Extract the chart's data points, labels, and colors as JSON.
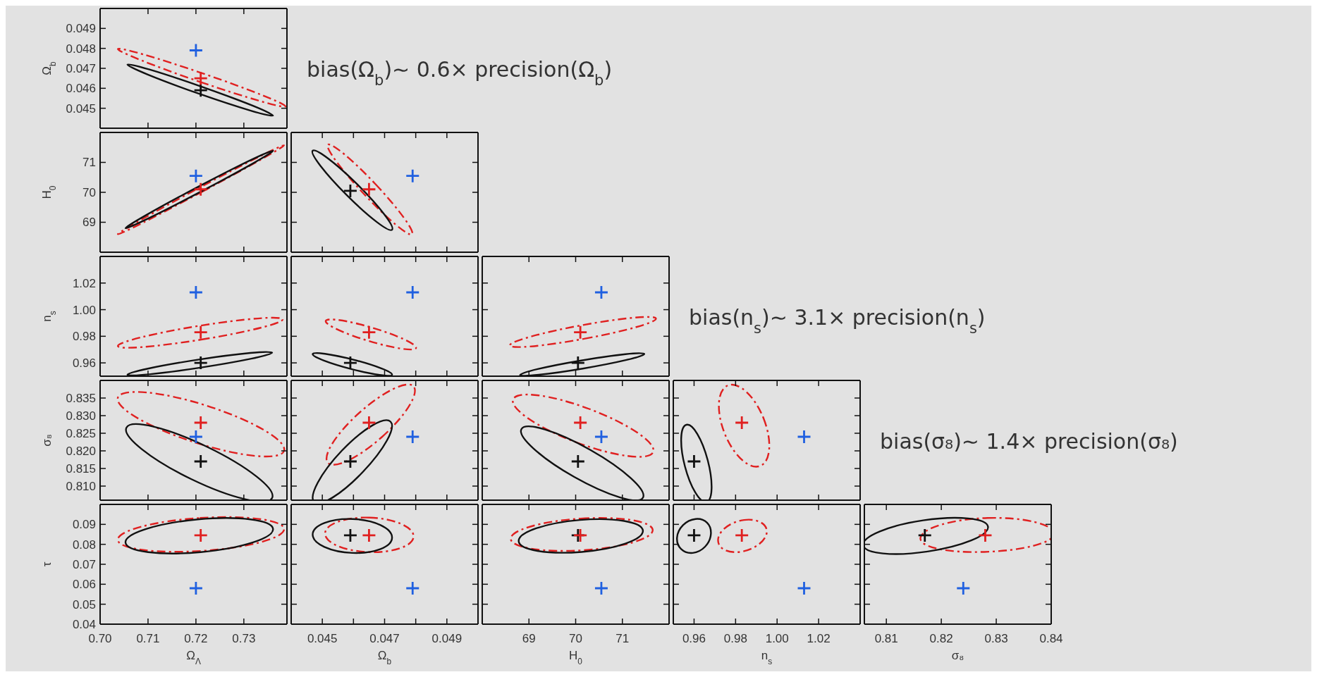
{
  "chart_data": [
    {
      "type": "scatter",
      "tick_labels": "y",
      "ylabel": "Ω$_{b}$",
      "xlim": [
        0.7,
        0.739
      ],
      "ylim": [
        0.044,
        0.05
      ],
      "xticks": [
        0.7,
        0.71,
        0.72,
        0.73
      ],
      "yticks": [
        0.045,
        0.046,
        0.047,
        0.048,
        0.049
      ],
      "annotations": [
        "bias(Ω$_{b}$)∼ 0.6× precision(Ω$_{b}$)"
      ],
      "series": [
        {
          "type": "scatter",
          "marker": "cross",
          "color": "#2060e0",
          "x": [
            0.72
          ],
          "values": [
            0.0479
          ]
        },
        {
          "type": "scatter",
          "marker": "cross",
          "color": "#111111",
          "x": [
            0.721
          ],
          "values": [
            0.0459
          ]
        },
        {
          "type": "scatter",
          "marker": "cross",
          "color": "#e02020",
          "x": [
            0.721
          ],
          "values": [
            0.0465
          ]
        }
      ]
    },
    {
      "type": "scatter",
      "tick_labels": "y",
      "ylabel": "H$_{0}$",
      "xlim": [
        0.7,
        0.739
      ],
      "ylim": [
        68,
        72
      ],
      "xticks": [
        0.7,
        0.71,
        0.72,
        0.73
      ],
      "yticks": [
        69,
        70,
        71
      ],
      "series": [
        {
          "type": "scatter",
          "marker": "cross",
          "color": "#2060e0",
          "x": [
            0.72
          ],
          "values": [
            70.55
          ]
        },
        {
          "type": "scatter",
          "marker": "cross",
          "color": "#e02020",
          "x": [
            0.721
          ],
          "values": [
            70.1
          ]
        }
      ]
    },
    {
      "type": "scatter",
      "tick_labels": false,
      "xlim": [
        0.044,
        0.05
      ],
      "ylim": [
        68,
        72
      ],
      "xticks": [
        0.045,
        0.046,
        0.047,
        0.048,
        0.049
      ],
      "yticks": [
        69,
        70,
        71
      ],
      "series": [
        {
          "type": "scatter",
          "marker": "cross",
          "color": "#2060e0",
          "x": [
            0.0479
          ],
          "values": [
            70.55
          ]
        },
        {
          "type": "scatter",
          "marker": "cross",
          "color": "#111111",
          "x": [
            0.0459
          ],
          "values": [
            70.05
          ]
        },
        {
          "type": "scatter",
          "marker": "cross",
          "color": "#e02020",
          "x": [
            0.0465
          ],
          "values": [
            70.1
          ]
        }
      ]
    },
    {
      "type": "scatter",
      "tick_labels": "y",
      "ylabel": "n$_{s}$",
      "xlim": [
        0.7,
        0.739
      ],
      "ylim": [
        0.95,
        1.04
      ],
      "xticks": [
        0.7,
        0.71,
        0.72,
        0.73
      ],
      "yticks": [
        0.96,
        0.98,
        {
          "value": 1,
          "label": "1.00"
        },
        1.02
      ],
      "series": [
        {
          "type": "scatter",
          "marker": "cross",
          "color": "#2060e0",
          "x": [
            0.72
          ],
          "values": [
            1.013
          ]
        },
        {
          "type": "scatter",
          "marker": "cross",
          "color": "#111111",
          "x": [
            0.721
          ],
          "values": [
            0.96
          ]
        },
        {
          "type": "scatter",
          "marker": "cross",
          "color": "#e02020",
          "x": [
            0.721
          ],
          "values": [
            0.983
          ]
        }
      ]
    },
    {
      "type": "scatter",
      "tick_labels": false,
      "xlim": [
        0.044,
        0.05
      ],
      "ylim": [
        0.95,
        1.04
      ],
      "xticks": [
        0.045,
        0.046,
        0.047,
        0.048,
        0.049
      ],
      "yticks": [
        0.96,
        0.98,
        1,
        1.02
      ],
      "series": [
        {
          "type": "scatter",
          "marker": "cross",
          "color": "#2060e0",
          "x": [
            0.0479
          ],
          "values": [
            1.013
          ]
        },
        {
          "type": "scatter",
          "marker": "cross",
          "color": "#111111",
          "x": [
            0.0459
          ],
          "values": [
            0.96
          ]
        },
        {
          "type": "scatter",
          "marker": "cross",
          "color": "#e02020",
          "x": [
            0.0465
          ],
          "values": [
            0.983
          ]
        }
      ]
    },
    {
      "type": "scatter",
      "tick_labels": false,
      "xlim": [
        68,
        72
      ],
      "ylim": [
        0.95,
        1.04
      ],
      "xticks": [
        69,
        70,
        71
      ],
      "yticks": [
        0.96,
        0.98,
        1,
        1.02
      ],
      "annotations": [
        "bias(n$_{s}$)∼ 3.1× precision(n$_{s}$)"
      ],
      "series": [
        {
          "type": "scatter",
          "marker": "cross",
          "color": "#2060e0",
          "x": [
            70.55
          ],
          "values": [
            1.013
          ]
        },
        {
          "type": "scatter",
          "marker": "cross",
          "color": "#111111",
          "x": [
            70.05
          ],
          "values": [
            0.96
          ]
        },
        {
          "type": "scatter",
          "marker": "cross",
          "color": "#e02020",
          "x": [
            70.1
          ],
          "values": [
            0.983
          ]
        }
      ]
    },
    {
      "type": "scatter",
      "tick_labels": "y",
      "ylabel": "σ₈",
      "xlim": [
        0.7,
        0.739
      ],
      "ylim": [
        0.806,
        0.84
      ],
      "xticks": [
        0.7,
        0.71,
        0.72,
        0.73
      ],
      "yticks": [
        {
          "value": 0.81,
          "label": "0.810"
        },
        0.815,
        {
          "value": 0.82,
          "label": "0.820"
        },
        0.825,
        {
          "value": 0.83,
          "label": "0.830"
        },
        0.835
      ],
      "series": [
        {
          "type": "scatter",
          "marker": "cross",
          "color": "#2060e0",
          "x": [
            0.72
          ],
          "values": [
            0.824
          ]
        },
        {
          "type": "scatter",
          "marker": "cross",
          "color": "#111111",
          "x": [
            0.721
          ],
          "values": [
            0.817
          ]
        },
        {
          "type": "scatter",
          "marker": "cross",
          "color": "#e02020",
          "x": [
            0.721
          ],
          "values": [
            0.828
          ]
        }
      ]
    },
    {
      "type": "scatter",
      "tick_labels": false,
      "xlim": [
        0.044,
        0.05
      ],
      "ylim": [
        0.806,
        0.84
      ],
      "xticks": [
        0.045,
        0.046,
        0.047,
        0.048,
        0.049
      ],
      "yticks": [
        0.81,
        0.815,
        0.82,
        0.825,
        0.83,
        0.835
      ],
      "series": [
        {
          "type": "scatter",
          "marker": "cross",
          "color": "#2060e0",
          "x": [
            0.0479
          ],
          "values": [
            0.824
          ]
        },
        {
          "type": "scatter",
          "marker": "cross",
          "color": "#111111",
          "x": [
            0.0459
          ],
          "values": [
            0.817
          ]
        },
        {
          "type": "scatter",
          "marker": "cross",
          "color": "#e02020",
          "x": [
            0.0465
          ],
          "values": [
            0.828
          ]
        }
      ]
    },
    {
      "type": "scatter",
      "tick_labels": false,
      "xlim": [
        68,
        72
      ],
      "ylim": [
        0.806,
        0.84
      ],
      "xticks": [
        69,
        70,
        71
      ],
      "yticks": [
        0.81,
        0.815,
        0.82,
        0.825,
        0.83,
        0.835
      ],
      "series": [
        {
          "type": "scatter",
          "marker": "cross",
          "color": "#2060e0",
          "x": [
            70.55
          ],
          "values": [
            0.824
          ]
        },
        {
          "type": "scatter",
          "marker": "cross",
          "color": "#111111",
          "x": [
            70.05
          ],
          "values": [
            0.817
          ]
        },
        {
          "type": "scatter",
          "marker": "cross",
          "color": "#e02020",
          "x": [
            70.1
          ],
          "values": [
            0.828
          ]
        }
      ]
    },
    {
      "type": "scatter",
      "tick_labels": false,
      "xlim": [
        0.95,
        1.04
      ],
      "ylim": [
        0.806,
        0.84
      ],
      "xticks": [
        0.96,
        0.98,
        1,
        1.02
      ],
      "yticks": [
        0.81,
        0.815,
        0.82,
        0.825,
        0.83,
        0.835
      ],
      "annotations": [
        "bias(σ₈)∼ 1.4× precision(σ₈)"
      ],
      "series": [
        {
          "type": "scatter",
          "marker": "cross",
          "color": "#2060e0",
          "x": [
            1.013
          ],
          "values": [
            0.824
          ]
        },
        {
          "type": "scatter",
          "marker": "cross",
          "color": "#111111",
          "x": [
            0.96
          ],
          "values": [
            0.817
          ]
        },
        {
          "type": "scatter",
          "marker": "cross",
          "color": "#e02020",
          "x": [
            0.983
          ],
          "values": [
            0.828
          ]
        }
      ]
    },
    {
      "type": "scatter",
      "xlabel": "Ω$_{Λ}$",
      "ylabel": "τ",
      "xlim": [
        0.7,
        0.739
      ],
      "ylim": [
        0.04,
        0.1
      ],
      "xticks": [
        {
          "value": 0.7,
          "label": "0.70"
        },
        0.71,
        0.72,
        0.73
      ],
      "yticks": [
        0.04,
        0.05,
        0.06,
        0.07,
        0.08,
        0.09
      ],
      "series": [
        {
          "type": "scatter",
          "marker": "cross",
          "color": "#2060e0",
          "x": [
            0.72
          ],
          "values": [
            0.058
          ]
        },
        {
          "type": "scatter",
          "marker": "cross",
          "color": "#e02020",
          "x": [
            0.721
          ],
          "values": [
            0.0845
          ]
        }
      ]
    },
    {
      "type": "scatter",
      "tick_labels": "x",
      "xlabel": "Ω$_{b}$",
      "xlim": [
        0.044,
        0.05
      ],
      "ylim": [
        0.04,
        0.1
      ],
      "xticks": [
        0.045,
        {
          "value": 0.046,
          "label": null
        },
        0.047,
        {
          "value": 0.048,
          "label": null
        },
        0.049
      ],
      "yticks": [
        0.04,
        0.05,
        0.06,
        0.07,
        0.08,
        0.09
      ],
      "series": [
        {
          "type": "scatter",
          "marker": "cross",
          "color": "#2060e0",
          "x": [
            0.0479
          ],
          "values": [
            0.058
          ]
        },
        {
          "type": "scatter",
          "marker": "cross",
          "color": "#111111",
          "x": [
            0.0459
          ],
          "values": [
            0.0845
          ]
        },
        {
          "type": "scatter",
          "marker": "cross",
          "color": "#e02020",
          "x": [
            0.0465
          ],
          "values": [
            0.0845
          ]
        }
      ]
    },
    {
      "type": "scatter",
      "tick_labels": "x",
      "xlabel": "H$_{0}$",
      "xlim": [
        68,
        72
      ],
      "ylim": [
        0.04,
        0.1
      ],
      "xticks": [
        69,
        70,
        71
      ],
      "yticks": [
        0.04,
        0.05,
        0.06,
        0.07,
        0.08,
        0.09
      ],
      "series": [
        {
          "type": "scatter",
          "marker": "cross",
          "color": "#2060e0",
          "x": [
            70.55
          ],
          "values": [
            0.058
          ]
        },
        {
          "type": "scatter",
          "marker": "cross",
          "color": "#111111",
          "x": [
            70.05
          ],
          "values": [
            0.0845
          ]
        },
        {
          "type": "scatter",
          "marker": "cross",
          "color": "#e02020",
          "x": [
            70.1
          ],
          "values": [
            0.0845
          ]
        }
      ]
    },
    {
      "type": "scatter",
      "tick_labels": "x",
      "xlabel": "n$_{s}$",
      "xlim": [
        0.95,
        1.04
      ],
      "ylim": [
        0.04,
        0.1
      ],
      "xticks": [
        0.96,
        0.98,
        {
          "value": 1,
          "label": "1.00"
        },
        1.02
      ],
      "yticks": [
        0.04,
        0.05,
        0.06,
        0.07,
        0.08,
        0.09
      ],
      "series": [
        {
          "type": "scatter",
          "marker": "cross",
          "color": "#2060e0",
          "x": [
            1.013
          ],
          "values": [
            0.058
          ]
        },
        {
          "type": "scatter",
          "marker": "cross",
          "color": "#111111",
          "x": [
            0.96
          ],
          "values": [
            0.0845
          ]
        },
        {
          "type": "scatter",
          "marker": "cross",
          "color": "#e02020",
          "x": [
            0.983
          ],
          "values": [
            0.0845
          ]
        }
      ]
    },
    {
      "type": "scatter",
      "tick_labels": "x",
      "xlabel": "σ₈",
      "xlim": [
        0.806,
        0.84
      ],
      "ylim": [
        0.04,
        0.1
      ],
      "xticks": [
        0.81,
        0.82,
        0.83,
        0.84
      ],
      "yticks": [
        0.04,
        0.05,
        0.06,
        0.07,
        0.08,
        0.09
      ],
      "series": [
        {
          "type": "scatter",
          "marker": "cross",
          "color": "#2060e0",
          "x": [
            0.824
          ],
          "values": [
            0.058
          ]
        },
        {
          "type": "scatter",
          "marker": "cross",
          "color": "#111111",
          "x": [
            0.817
          ],
          "values": [
            0.0845
          ]
        },
        {
          "type": "scatter",
          "marker": "cross",
          "color": "#e02020",
          "x": [
            0.828
          ],
          "values": [
            0.0845
          ]
        }
      ]
    }
  ]
}
